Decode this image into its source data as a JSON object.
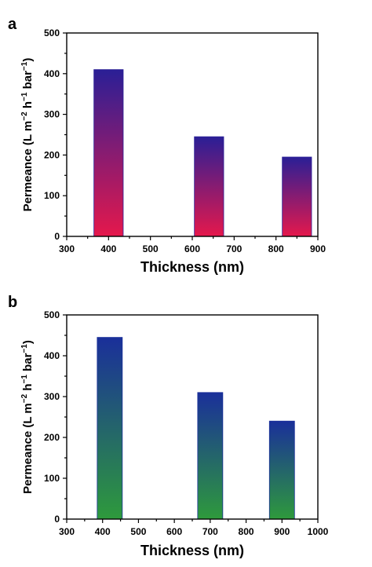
{
  "chart_data": [
    {
      "type": "bar",
      "panel_label": "a",
      "xlabel": "Thickness (nm)",
      "ylabel": "Permeance (L m−2 h−1 bar−1)",
      "ylabel_parts": [
        "Permeance (L m",
        "−2",
        " h",
        "−1",
        " bar",
        "−1",
        ")"
      ],
      "xlim": [
        300,
        900
      ],
      "ylim": [
        0,
        500
      ],
      "xticks": [
        300,
        400,
        500,
        600,
        700,
        800,
        900
      ],
      "yticks": [
        0,
        100,
        200,
        300,
        400,
        500
      ],
      "bar_width": 70,
      "x": [
        400,
        640,
        850
      ],
      "values": [
        410,
        245,
        195
      ],
      "gradient": {
        "top": "#2a1f96",
        "bottom": "#e5184c"
      }
    },
    {
      "type": "bar",
      "panel_label": "b",
      "xlabel": "Thickness (nm)",
      "ylabel": "Permeance (L m−2 h−1 bar−1)",
      "ylabel_parts": [
        "Permeance (L m",
        "−2",
        " h",
        "−1",
        " bar",
        "−1",
        ")"
      ],
      "xlim": [
        300,
        1000
      ],
      "ylim": [
        0,
        500
      ],
      "xticks": [
        300,
        400,
        500,
        600,
        700,
        800,
        900,
        1000
      ],
      "yticks": [
        0,
        100,
        200,
        300,
        400,
        500
      ],
      "bar_width": 70,
      "x": [
        420,
        700,
        900
      ],
      "values": [
        445,
        310,
        240
      ],
      "gradient": {
        "top": "#1a2f9a",
        "bottom": "#2e9a3c"
      }
    }
  ]
}
